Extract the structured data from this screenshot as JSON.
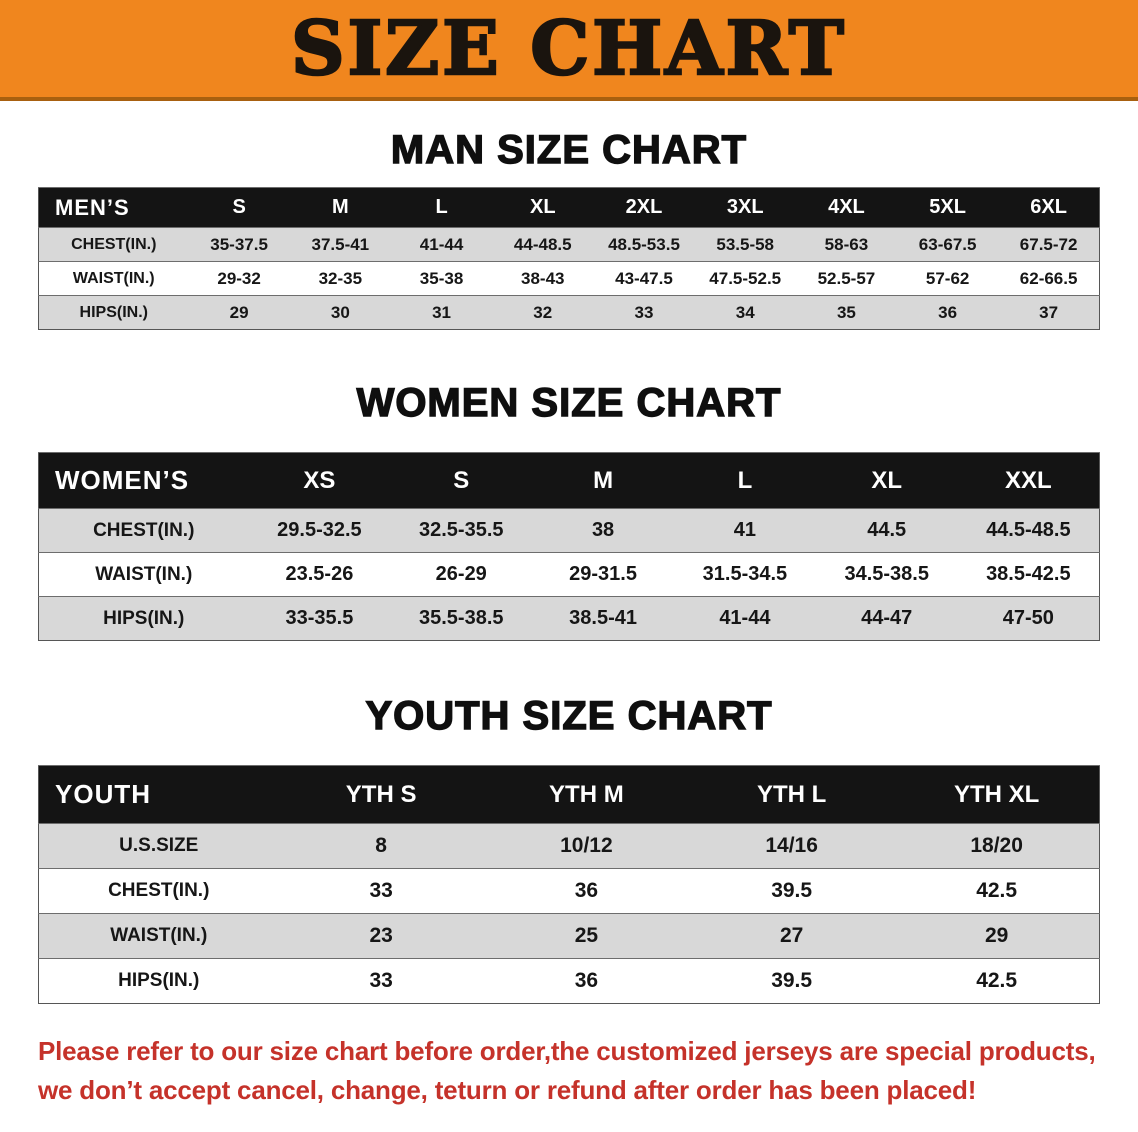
{
  "banner": {
    "title": "SIZE CHART",
    "bg_color": "#F0861E",
    "border_color": "#A8600F",
    "text_color": "#1A140E"
  },
  "sections": [
    {
      "heading": "MAN SIZE CHART",
      "table": {
        "corner_label": "MEN’S",
        "columns": [
          "S",
          "M",
          "L",
          "XL",
          "2XL",
          "3XL",
          "4XL",
          "5XL",
          "6XL"
        ],
        "rows": [
          {
            "label": "CHEST(IN.)",
            "values": [
              "35-37.5",
              "37.5-41",
              "41-44",
              "44-48.5",
              "48.5-53.5",
              "53.5-58",
              "58-63",
              "63-67.5",
              "67.5-72"
            ]
          },
          {
            "label": "WAIST(IN.)",
            "values": [
              "29-32",
              "32-35",
              "35-38",
              "38-43",
              "43-47.5",
              "47.5-52.5",
              "52.5-57",
              "57-62",
              "62-66.5"
            ]
          },
          {
            "label": "HIPS(IN.)",
            "values": [
              "29",
              "30",
              "31",
              "32",
              "33",
              "34",
              "35",
              "36",
              "37"
            ]
          }
        ]
      }
    },
    {
      "heading": "WOMEN SIZE CHART",
      "table": {
        "corner_label": "WOMEN’S",
        "columns": [
          "XS",
          "S",
          "M",
          "L",
          "XL",
          "XXL"
        ],
        "rows": [
          {
            "label": "CHEST(IN.)",
            "values": [
              "29.5-32.5",
              "32.5-35.5",
              "38",
              "41",
              "44.5",
              "44.5-48.5"
            ]
          },
          {
            "label": "WAIST(IN.)",
            "values": [
              "23.5-26",
              "26-29",
              "29-31.5",
              "31.5-34.5",
              "34.5-38.5",
              "38.5-42.5"
            ]
          },
          {
            "label": "HIPS(IN.)",
            "values": [
              "33-35.5",
              "35.5-38.5",
              "38.5-41",
              "41-44",
              "44-47",
              "47-50"
            ]
          }
        ]
      }
    },
    {
      "heading": "YOUTH SIZE CHART",
      "table": {
        "corner_label": "YOUTH",
        "columns": [
          "YTH S",
          "YTH M",
          "YTH L",
          "YTH XL"
        ],
        "rows": [
          {
            "label": "U.S.SIZE",
            "values": [
              "8",
              "10/12",
              "14/16",
              "18/20"
            ]
          },
          {
            "label": "CHEST(IN.)",
            "values": [
              "33",
              "36",
              "39.5",
              "42.5"
            ]
          },
          {
            "label": "WAIST(IN.)",
            "values": [
              "23",
              "25",
              "27",
              "29"
            ]
          },
          {
            "label": "HIPS(IN.)",
            "values": [
              "33",
              "36",
              "39.5",
              "42.5"
            ]
          }
        ]
      }
    }
  ],
  "table_colors": {
    "header_bg": "#141414",
    "header_text": "#FFFFFF",
    "row_alt_bg": "#D8D8D8",
    "row_bg": "#FFFFFF"
  },
  "footer": {
    "line1": "Please refer to our size chart before order,the customized jerseys are special products,",
    "line2": "we don’t accept cancel, change, teturn or refund after order has been placed!",
    "text_color": "#C5322A"
  }
}
